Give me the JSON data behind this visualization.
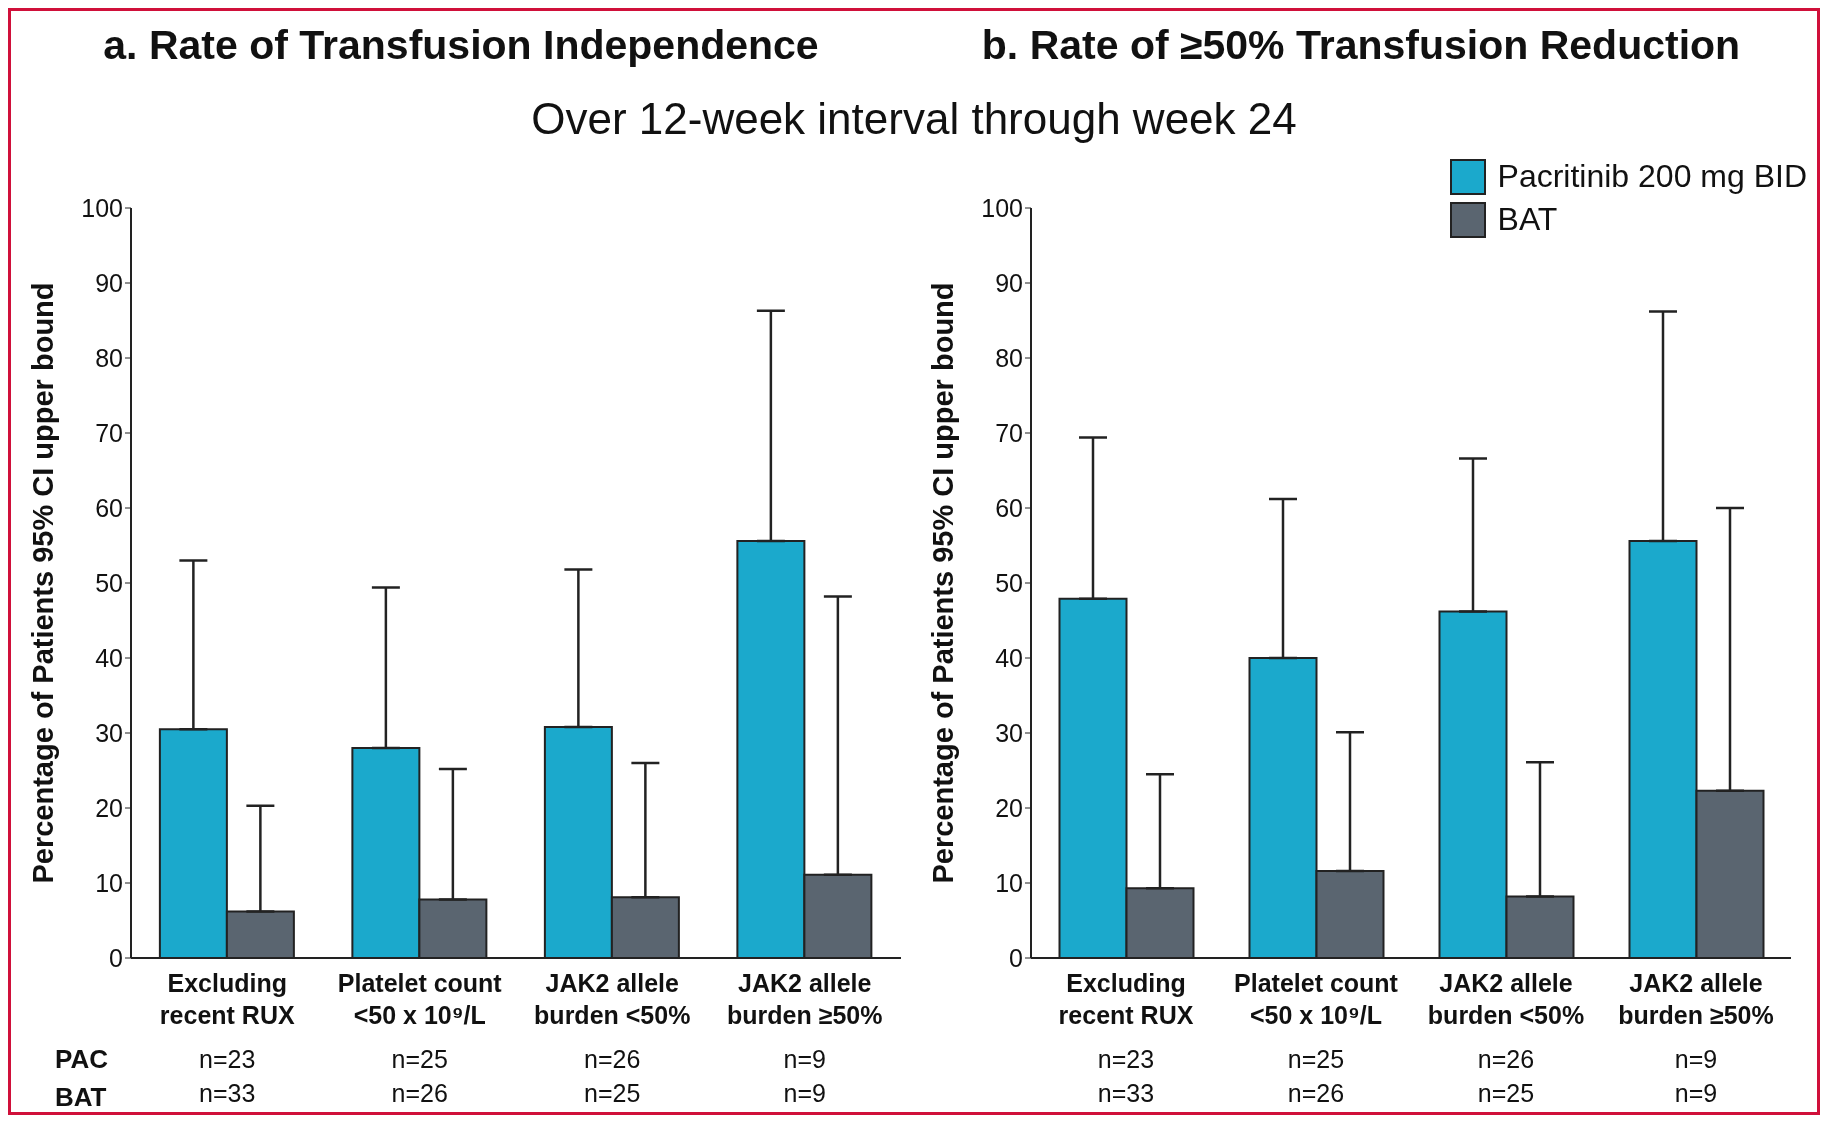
{
  "chart_data": [
    {
      "type": "bar",
      "title": "a. Rate of Transfusion Independence",
      "subtitle": "Over 12-week interval through week 24",
      "ylabel": "Percentage of Patients 95% CI upper bound",
      "categories": [
        "Excluding recent RUX",
        "Platelet count <50 x 10⁹/L",
        "JAK2 allele burden <50%",
        "JAK2 allele burden ≥50%"
      ],
      "series": [
        {
          "color": "#1ba9cc",
          "values": [
            30.5,
            28,
            30.8,
            55.6
          ],
          "errors": [
            [
              30.5,
              53
            ],
            [
              28,
              49.4
            ],
            [
              30.8,
              51.8
            ],
            [
              55.6,
              86.3
            ]
          ]
        },
        {
          "color": "#5a6570",
          "values": [
            6.2,
            7.8,
            8.1,
            11.1
          ],
          "errors": [
            [
              6.2,
              20.3
            ],
            [
              7.8,
              25.2
            ],
            [
              8.1,
              26
            ],
            [
              11.1,
              48.2
            ]
          ]
        }
      ],
      "ylim": [
        0,
        100
      ],
      "yticks": [
        0,
        10,
        20,
        30,
        40,
        50,
        60,
        70,
        80,
        90,
        100
      ],
      "grid": false,
      "legend": false,
      "annotations": [
        "PAC",
        "BAT",
        "n=23",
        "n=33",
        "n=25",
        "n=26",
        "n=26",
        "n=25",
        "n=9",
        "n=9"
      ]
    },
    {
      "type": "bar",
      "title": "b. Rate of ≥50% Transfusion Reduction",
      "ylabel": "Percentage of Patients 95% CI upper bound",
      "categories": [
        "Excluding recent RUX",
        "Platelet count <50 x 10⁹/L",
        "JAK2 allele burden <50%",
        "JAK2 allele burden ≥50%"
      ],
      "series": [
        {
          "name": "Pacritinib 200 mg BID",
          "color": "#1ba9cc",
          "values": [
            47.9,
            40,
            46.2,
            55.6
          ],
          "errors": [
            [
              47.9,
              69.4
            ],
            [
              40,
              61.2
            ],
            [
              46.2,
              66.6
            ],
            [
              55.6,
              86.2
            ]
          ]
        },
        {
          "name": "BAT",
          "color": "#5a6570",
          "values": [
            9.3,
            11.6,
            8.2,
            22.3
          ],
          "errors": [
            [
              9.3,
              24.5
            ],
            [
              11.6,
              30.1
            ],
            [
              8.2,
              26.1
            ],
            [
              22.3,
              60
            ]
          ]
        }
      ],
      "ylim": [
        0,
        100
      ],
      "yticks": [
        0,
        10,
        20,
        30,
        40,
        50,
        60,
        70,
        80,
        90,
        100
      ],
      "grid": false,
      "legend": "top right",
      "annotations": [
        "n=23",
        "n=33",
        "n=25",
        "n=26",
        "n=26",
        "n=25",
        "n=9",
        "n=9"
      ]
    }
  ]
}
